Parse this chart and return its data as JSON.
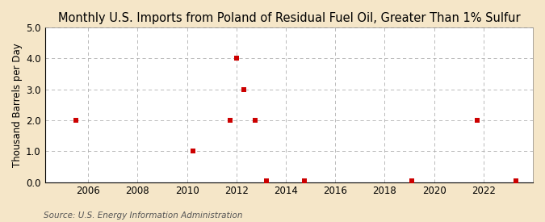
{
  "title": "Monthly U.S. Imports from Poland of Residual Fuel Oil, Greater Than 1% Sulfur",
  "ylabel": "Thousand Barrels per Day",
  "source": "Source: U.S. Energy Information Administration",
  "figure_bg_color": "#f5e6c8",
  "plot_bg_color": "#ffffff",
  "xlim": [
    2004.25,
    2024.0
  ],
  "ylim": [
    0.0,
    5.0
  ],
  "yticks": [
    0.0,
    1.0,
    2.0,
    3.0,
    4.0,
    5.0
  ],
  "xticks": [
    2006,
    2008,
    2010,
    2012,
    2014,
    2016,
    2018,
    2020,
    2022
  ],
  "data_x": [
    2005.5,
    2010.25,
    2011.75,
    2012.0,
    2012.3,
    2012.75,
    2013.2,
    2014.75,
    2019.1,
    2021.75,
    2023.3
  ],
  "data_y": [
    2.0,
    1.0,
    2.0,
    4.0,
    3.0,
    2.0,
    0.05,
    0.05,
    0.05,
    2.0,
    0.05
  ],
  "marker_color": "#cc0000",
  "marker_size": 16,
  "grid_color": "#b0b0b0",
  "title_fontsize": 10.5,
  "label_fontsize": 8.5,
  "tick_fontsize": 8.5,
  "source_fontsize": 7.5
}
